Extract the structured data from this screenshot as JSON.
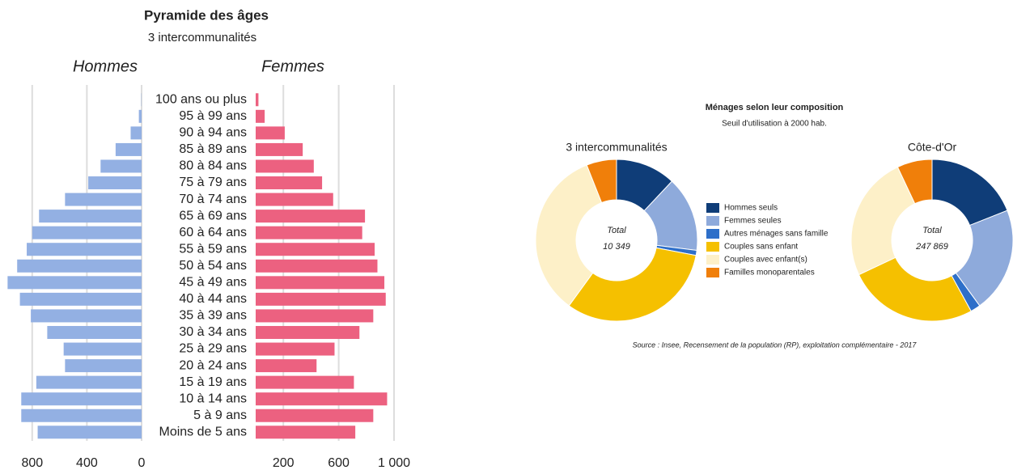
{
  "chart_data": [
    {
      "type": "pyramid",
      "title": "Pyramide des âges",
      "subtitle": "3 intercommunalités",
      "categories": [
        "100 ans ou plus",
        "95 à 99 ans",
        "90 à 94 ans",
        "85 à 89 ans",
        "80 à 84 ans",
        "75 à 79 ans",
        "70 à 74 ans",
        "65 à 69 ans",
        "60 à 64 ans",
        "55 à 59 ans",
        "50 à 54 ans",
        "45 à 49 ans",
        "40 à 44 ans",
        "35 à 39 ans",
        "30 à 34 ans",
        "25 à 29 ans",
        "20 à 24 ans",
        "15 à 19 ans",
        "10 à 14 ans",
        "5 à 9 ans",
        "Moins de 5 ans"
      ],
      "series": [
        {
          "name": "Hommes",
          "color": "#93b0e3",
          "values": [
            2,
            20,
            80,
            190,
            300,
            390,
            560,
            750,
            800,
            840,
            910,
            980,
            890,
            810,
            690,
            570,
            560,
            770,
            880,
            880,
            760
          ]
        },
        {
          "name": "Femmes",
          "color": "#ec6180",
          "values": [
            20,
            65,
            210,
            340,
            420,
            480,
            560,
            790,
            770,
            860,
            880,
            930,
            940,
            850,
            750,
            570,
            440,
            710,
            950,
            850,
            720
          ]
        }
      ],
      "xlim": [
        0,
        1000
      ],
      "xticks": [
        800,
        400,
        0
      ],
      "x2lim": [
        0,
        1000
      ],
      "x2ticks": [
        200,
        600,
        {
          "value": 1000,
          "label": "1 000"
        }
      ],
      "grid": true
    },
    {
      "type": "donut",
      "title": "Ménages selon leur composition",
      "subtitle": "Seuil d'utilisation à 2000 hab.",
      "source": "Source : Insee, Recensement de la population (RP), exploitation complémentaire - 2017",
      "categories": [
        "Hommes seuls",
        "Femmes seules",
        "Autres ménages sans famille",
        "Couples sans enfant",
        "Couples avec enfant(s)",
        "Familles monoparentales"
      ],
      "colors": [
        "#0f3d78",
        "#8eaadb",
        "#2e6fc9",
        "#f5c000",
        "#fdf0c8",
        "#f07f0a"
      ],
      "total_label": "Total",
      "pies": [
        {
          "name": "3 intercommunalités",
          "total": "10 349",
          "values": [
            12,
            15,
            1,
            32,
            34,
            6
          ]
        },
        {
          "name": "Côte-d'Or",
          "total": "247 869",
          "values": [
            19,
            21,
            2,
            26,
            25,
            7
          ]
        }
      ]
    }
  ]
}
